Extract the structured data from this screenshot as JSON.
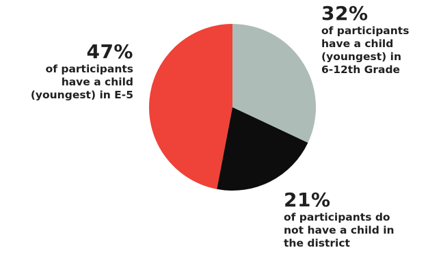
{
  "chart_data": {
    "type": "pie",
    "slices": [
      {
        "value": 32,
        "label": "32%",
        "description": "of participants\nhave a child\n(youngest) in\n6-12th Grade",
        "color": "#aebcb8"
      },
      {
        "value": 21,
        "label": "21%",
        "description": "of participants do\nnot have a child in\nthe district",
        "color": "#0d0d0d"
      },
      {
        "value": 47,
        "label": "47%",
        "description": "of participants\nhave a child\n(youngest) in E-5",
        "color": "#ef4238"
      }
    ],
    "start_angle_deg": 0,
    "direction": "clockwise"
  }
}
